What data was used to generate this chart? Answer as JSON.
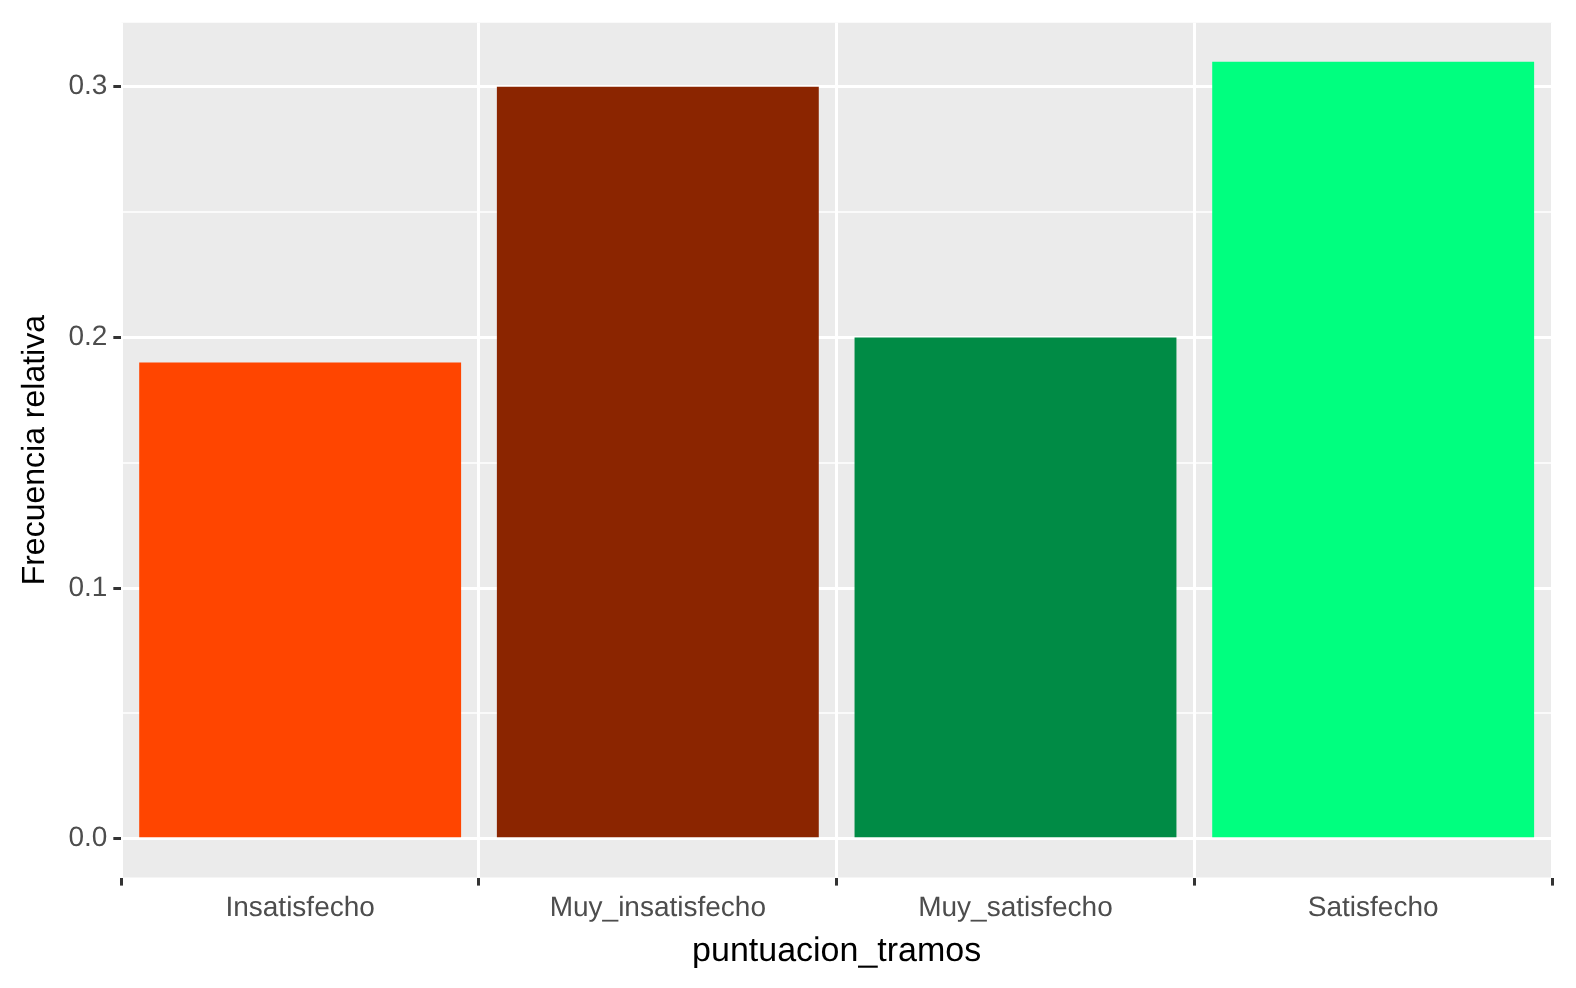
{
  "chart_data": {
    "type": "bar",
    "xlabel": "puntuacion_tramos",
    "ylabel": "Frecuencia relativa",
    "categories": [
      "Insatisfecho",
      "Muy_insatisfecho",
      "Muy_satisfecho",
      "Satisfecho"
    ],
    "values": [
      0.19,
      0.3,
      0.2,
      0.31
    ],
    "colors": [
      "#ff4500",
      "#8b2500",
      "#008b45",
      "#00ff7f"
    ],
    "ylim": [
      -0.0155,
      0.3255
    ],
    "yticks": [
      {
        "value": 0,
        "label": "0.0"
      },
      {
        "value": 0.05,
        "label": null
      },
      {
        "value": 0.1,
        "label": "0.1"
      },
      {
        "value": 0.15,
        "label": null
      },
      {
        "value": 0.2,
        "label": "0.2"
      },
      {
        "value": 0.25,
        "label": null
      },
      {
        "value": 0.3,
        "label": "0.3"
      }
    ],
    "grid": true,
    "legend": false
  }
}
